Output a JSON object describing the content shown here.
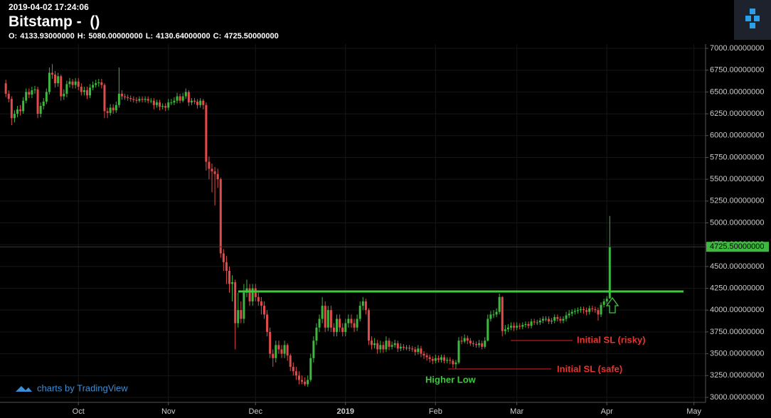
{
  "header": {
    "timestamp": "2019-04-02 17:24:06",
    "title": "Bitstamp -  ()",
    "ohlc": [
      {
        "label": "O:",
        "value": "4133.93000000"
      },
      {
        "label": "H:",
        "value": "5080.00000000"
      },
      {
        "label": "L:",
        "value": "4130.64000000"
      },
      {
        "label": "C:",
        "value": "4725.50000000"
      }
    ]
  },
  "watermark": "charts by TradingView",
  "chart_data": {
    "type": "candlestick",
    "up_color": "#3fb83f",
    "down_color": "#e24b4b",
    "grid": true,
    "xlim": [
      -2,
      241
    ],
    "xticks": [
      {
        "value": 25,
        "label": "Oct"
      },
      {
        "value": 56,
        "label": "Nov"
      },
      {
        "value": 86,
        "label": "Dec"
      },
      {
        "value": 117,
        "label": "2019"
      },
      {
        "value": 148,
        "label": "Feb"
      },
      {
        "value": 176,
        "label": "Mar"
      },
      {
        "value": 207,
        "label": "Apr"
      },
      {
        "value": 237,
        "label": "May"
      }
    ],
    "ylim": [
      2943,
      7049
    ],
    "yticks": [
      {
        "value": 3000,
        "label": "3000.00000000"
      },
      {
        "value": 3250,
        "label": "3250.00000000"
      },
      {
        "value": 3500,
        "label": "3500.00000000"
      },
      {
        "value": 3750,
        "label": "3750.00000000"
      },
      {
        "value": 4000,
        "label": "4000.00000000"
      },
      {
        "value": 4250,
        "label": "4250.00000000"
      },
      {
        "value": 4500,
        "label": "4500.00000000"
      },
      {
        "value": 4750,
        "label": "4750.00000000"
      },
      {
        "value": 5000,
        "label": "5000.00000000"
      },
      {
        "value": 5250,
        "label": "5250.00000000"
      },
      {
        "value": 5500,
        "label": "5500.00000000"
      },
      {
        "value": 5750,
        "label": "5750.00000000"
      },
      {
        "value": 6000,
        "label": "6000.00000000"
      },
      {
        "value": 6250,
        "label": "6250.00000000"
      },
      {
        "value": 6500,
        "label": "6500.00000000"
      },
      {
        "value": 6750,
        "label": "6750.00000000"
      },
      {
        "value": 7000,
        "label": "7000.00000000"
      }
    ],
    "last_price": {
      "value": 4725.5,
      "label": "4725.50000000"
    },
    "annotations": [
      "Initial SL (risky)",
      "Initial SL (safe)",
      "Higher Low"
    ],
    "open": [
      6600,
      6480,
      6420,
      6200,
      6250,
      6300,
      6280,
      6400,
      6500,
      6470,
      6520,
      6530,
      6250,
      6340,
      6390,
      6500,
      6720,
      6700,
      6600,
      6680,
      6450,
      6480,
      6590,
      6620,
      6580,
      6620,
      6560,
      6500,
      6520,
      6460,
      6550,
      6580,
      6600,
      6610,
      6580,
      6280,
      6260,
      6320,
      6290,
      6350,
      6480,
      6450,
      6440,
      6430,
      6420,
      6410,
      6400,
      6420,
      6410,
      6420,
      6400,
      6400,
      6350,
      6380,
      6330,
      6340,
      6320,
      6380,
      6380,
      6400,
      6450,
      6400,
      6450,
      6500,
      6380,
      6400,
      6390,
      6350,
      6400,
      6350,
      5700,
      5620,
      5590,
      5560,
      5500,
      4650,
      4550,
      4450,
      4300,
      4320,
      3850,
      4000,
      3900,
      4200,
      4250,
      4100,
      4250,
      4150,
      4100,
      4050,
      3950,
      3750,
      3500,
      3450,
      3600,
      3550,
      3500,
      3600,
      3480,
      3350,
      3300,
      3250,
      3200,
      3180,
      3150,
      3200,
      3450,
      3650,
      3800,
      3900,
      4050,
      3800,
      4000,
      3800,
      3750,
      3900,
      3800,
      3750,
      3850,
      3900,
      3850,
      3800,
      3900,
      4050,
      4100,
      4000,
      3650,
      3600,
      3620,
      3550,
      3600,
      3550,
      3650,
      3580,
      3600,
      3620,
      3560,
      3580,
      3570,
      3570,
      3560,
      3550,
      3520,
      3560,
      3500,
      3480,
      3460,
      3440,
      3420,
      3450,
      3430,
      3460,
      3420,
      3430,
      3420,
      3380,
      3400,
      3650,
      3640,
      3680,
      3650,
      3620,
      3610,
      3600,
      3620,
      3580,
      3650,
      3900,
      3950,
      3950,
      3980,
      4150,
      3760,
      3780,
      3800,
      3820,
      3800,
      3820,
      3810,
      3830,
      3840,
      3820,
      3870,
      3860,
      3860,
      3880,
      3900,
      3900,
      3870,
      3880,
      3920,
      3900,
      3880,
      3900,
      3940,
      3960,
      3980,
      3990,
      4000,
      4010,
      4000,
      3980,
      4020,
      4010,
      4000,
      3950,
      4060,
      4100,
      4133.93
    ],
    "high": [
      6640,
      6520,
      6450,
      6290,
      6340,
      6350,
      6440,
      6540,
      6540,
      6560,
      6570,
      6560,
      6380,
      6430,
      6540,
      6780,
      6820,
      6740,
      6720,
      6700,
      6530,
      6630,
      6660,
      6650,
      6660,
      6660,
      6600,
      6560,
      6560,
      6590,
      6620,
      6640,
      6650,
      6650,
      6600,
      6320,
      6360,
      6360,
      6390,
      6780,
      6520,
      6480,
      6470,
      6460,
      6450,
      6440,
      6450,
      6450,
      6450,
      6450,
      6430,
      6430,
      6410,
      6410,
      6370,
      6370,
      6420,
      6420,
      6440,
      6490,
      6480,
      6490,
      6540,
      6520,
      6430,
      6430,
      6420,
      6430,
      6420,
      6380,
      5760,
      5680,
      5640,
      5620,
      5520,
      4700,
      4620,
      4500,
      4400,
      4350,
      4200,
      4100,
      4300,
      4350,
      4300,
      4300,
      4300,
      4200,
      4150,
      4100,
      4000,
      3800,
      3550,
      3650,
      3650,
      3600,
      3650,
      3620,
      3500,
      3400,
      3350,
      3300,
      3250,
      3230,
      3250,
      3500,
      3700,
      3850,
      3950,
      4150,
      4100,
      4050,
      4050,
      3850,
      3950,
      3950,
      3850,
      3900,
      3950,
      3950,
      3900,
      3950,
      4100,
      4150,
      4130,
      4020,
      3700,
      3680,
      3660,
      3650,
      3640,
      3700,
      3680,
      3640,
      3660,
      3650,
      3620,
      3610,
      3600,
      3600,
      3590,
      3580,
      3600,
      3590,
      3530,
      3510,
      3490,
      3470,
      3490,
      3480,
      3490,
      3490,
      3460,
      3460,
      3440,
      3430,
      3690,
      3700,
      3720,
      3710,
      3680,
      3650,
      3640,
      3660,
      3650,
      3690,
      3950,
      3990,
      4000,
      4020,
      4190,
      4160,
      3830,
      3840,
      3860,
      3860,
      3860,
      3850,
      3860,
      3870,
      3870,
      3900,
      3900,
      3890,
      3910,
      3930,
      3930,
      3930,
      3910,
      3950,
      3950,
      3930,
      3930,
      3980,
      4000,
      4010,
      4020,
      4030,
      4040,
      4040,
      4030,
      4050,
      4050,
      4040,
      4030,
      4090,
      4130,
      4160,
      5080
    ],
    "low": [
      6440,
      6380,
      6120,
      6150,
      6210,
      6230,
      6250,
      6370,
      6430,
      6430,
      6480,
      6200,
      6210,
      6300,
      6360,
      6470,
      6650,
      6550,
      6560,
      6400,
      6410,
      6440,
      6550,
      6540,
      6540,
      6520,
      6460,
      6460,
      6420,
      6430,
      6520,
      6550,
      6560,
      6540,
      6200,
      6200,
      6230,
      6250,
      6260,
      6320,
      6410,
      6410,
      6400,
      6390,
      6380,
      6370,
      6380,
      6380,
      6380,
      6370,
      6370,
      6300,
      6320,
      6290,
      6300,
      6280,
      6290,
      6350,
      6350,
      6370,
      6370,
      6380,
      6420,
      6340,
      6350,
      6360,
      6310,
      6320,
      6300,
      5600,
      5500,
      5350,
      5200,
      5400,
      4600,
      4450,
      4300,
      4200,
      4100,
      3550,
      3800,
      3850,
      3850,
      4150,
      4050,
      4050,
      4100,
      4050,
      3950,
      3900,
      3700,
      3450,
      3350,
      3400,
      3500,
      3450,
      3450,
      3420,
      3300,
      3250,
      3200,
      3150,
      3150,
      3130,
      3120,
      3180,
      3400,
      3600,
      3750,
      3850,
      3750,
      3760,
      3750,
      3700,
      3700,
      3750,
      3700,
      3700,
      3800,
      3800,
      3750,
      3760,
      3870,
      4000,
      3950,
      3600,
      3550,
      3560,
      3500,
      3510,
      3510,
      3520,
      3540,
      3550,
      3570,
      3520,
      3530,
      3540,
      3540,
      3530,
      3520,
      3480,
      3490,
      3460,
      3440,
      3420,
      3400,
      3380,
      3390,
      3400,
      3400,
      3390,
      3390,
      3380,
      3340,
      3330,
      3380,
      3610,
      3620,
      3610,
      3590,
      3580,
      3570,
      3570,
      3550,
      3560,
      3640,
      3870,
      3910,
      3920,
      3950,
      3700,
      3720,
      3750,
      3770,
      3760,
      3770,
      3780,
      3780,
      3800,
      3790,
      3790,
      3830,
      3830,
      3830,
      3850,
      3870,
      3840,
      3840,
      3850,
      3870,
      3850,
      3850,
      3870,
      3910,
      3930,
      3950,
      3960,
      3970,
      3960,
      3940,
      3950,
      3980,
      3970,
      3880,
      3920,
      4030,
      4070,
      4130.64
    ],
    "close": [
      6480,
      6420,
      6200,
      6250,
      6300,
      6280,
      6400,
      6500,
      6470,
      6520,
      6530,
      6250,
      6340,
      6390,
      6500,
      6720,
      6700,
      6600,
      6680,
      6450,
      6480,
      6590,
      6620,
      6580,
      6620,
      6560,
      6500,
      6520,
      6460,
      6550,
      6580,
      6600,
      6610,
      6580,
      6280,
      6260,
      6320,
      6290,
      6350,
      6480,
      6450,
      6440,
      6430,
      6420,
      6410,
      6400,
      6420,
      6410,
      6420,
      6400,
      6400,
      6350,
      6380,
      6330,
      6340,
      6320,
      6380,
      6380,
      6400,
      6450,
      6400,
      6450,
      6500,
      6380,
      6400,
      6390,
      6350,
      6400,
      6350,
      5700,
      5620,
      5590,
      5560,
      5500,
      4650,
      4550,
      4450,
      4300,
      4320,
      3850,
      4000,
      3900,
      4200,
      4250,
      4100,
      4250,
      4150,
      4100,
      4050,
      3950,
      3750,
      3500,
      3450,
      3600,
      3550,
      3500,
      3600,
      3480,
      3350,
      3300,
      3250,
      3200,
      3180,
      3150,
      3200,
      3450,
      3650,
      3800,
      3900,
      4050,
      3800,
      4000,
      3800,
      3750,
      3900,
      3800,
      3750,
      3850,
      3900,
      3850,
      3800,
      3900,
      4050,
      4100,
      4000,
      3650,
      3600,
      3620,
      3550,
      3600,
      3550,
      3650,
      3580,
      3600,
      3620,
      3560,
      3580,
      3570,
      3570,
      3560,
      3550,
      3520,
      3560,
      3500,
      3480,
      3460,
      3440,
      3420,
      3450,
      3430,
      3460,
      3420,
      3430,
      3420,
      3380,
      3400,
      3650,
      3640,
      3680,
      3650,
      3620,
      3610,
      3600,
      3620,
      3580,
      3650,
      3900,
      3950,
      3950,
      3980,
      4150,
      3760,
      3780,
      3800,
      3820,
      3800,
      3820,
      3810,
      3830,
      3840,
      3820,
      3870,
      3860,
      3860,
      3880,
      3900,
      3900,
      3870,
      3880,
      3920,
      3900,
      3880,
      3900,
      3940,
      3960,
      3980,
      3990,
      4000,
      4010,
      4000,
      3980,
      4020,
      4010,
      4000,
      3950,
      4060,
      4100,
      4130,
      4725.5
    ]
  }
}
